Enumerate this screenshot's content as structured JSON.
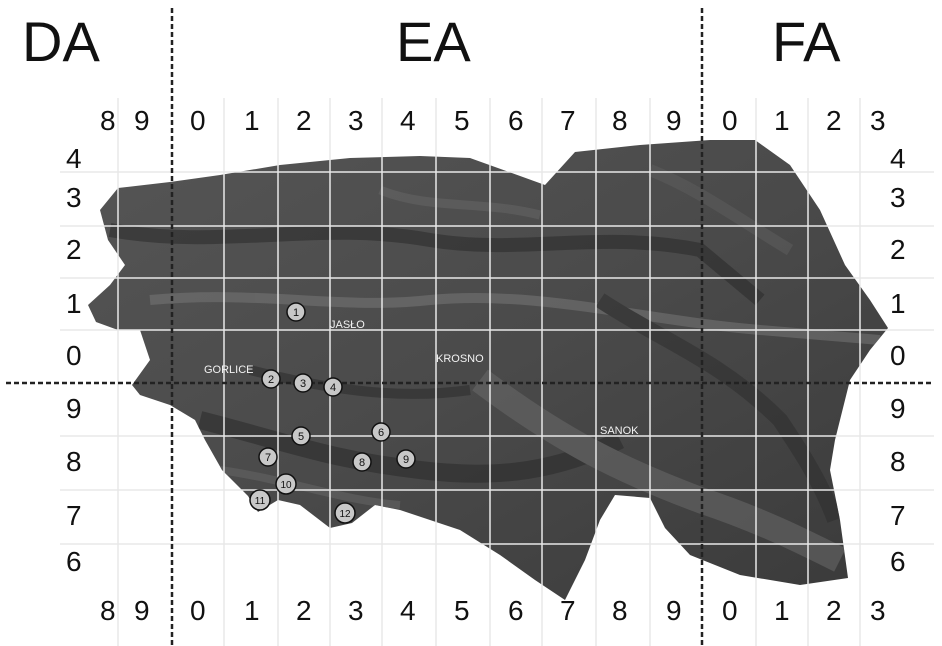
{
  "zones": [
    "DA",
    "EA",
    "FA"
  ],
  "columns": [
    "8",
    "9",
    "0",
    "1",
    "2",
    "3",
    "4",
    "5",
    "6",
    "7",
    "8",
    "9",
    "0",
    "1",
    "2",
    "3"
  ],
  "rows_left": [
    "4",
    "3",
    "2",
    "1",
    "0",
    "9",
    "8",
    "7",
    "6"
  ],
  "rows_right": [
    "4",
    "3",
    "2",
    "1",
    "0",
    "9",
    "8",
    "7",
    "6"
  ],
  "towns": [
    "JASŁO",
    "GORLICE",
    "KROSNO",
    "SANOK"
  ],
  "sites": [
    "1",
    "2",
    "3",
    "4",
    "5",
    "6",
    "7",
    "8",
    "9",
    "10",
    "11",
    "12"
  ],
  "colors": {
    "grid": "#e8e8e8",
    "land": "#4a4a4a",
    "marker_fill": "#c8c8c8",
    "text": "#111111",
    "town_label": "#f2f2f2"
  }
}
